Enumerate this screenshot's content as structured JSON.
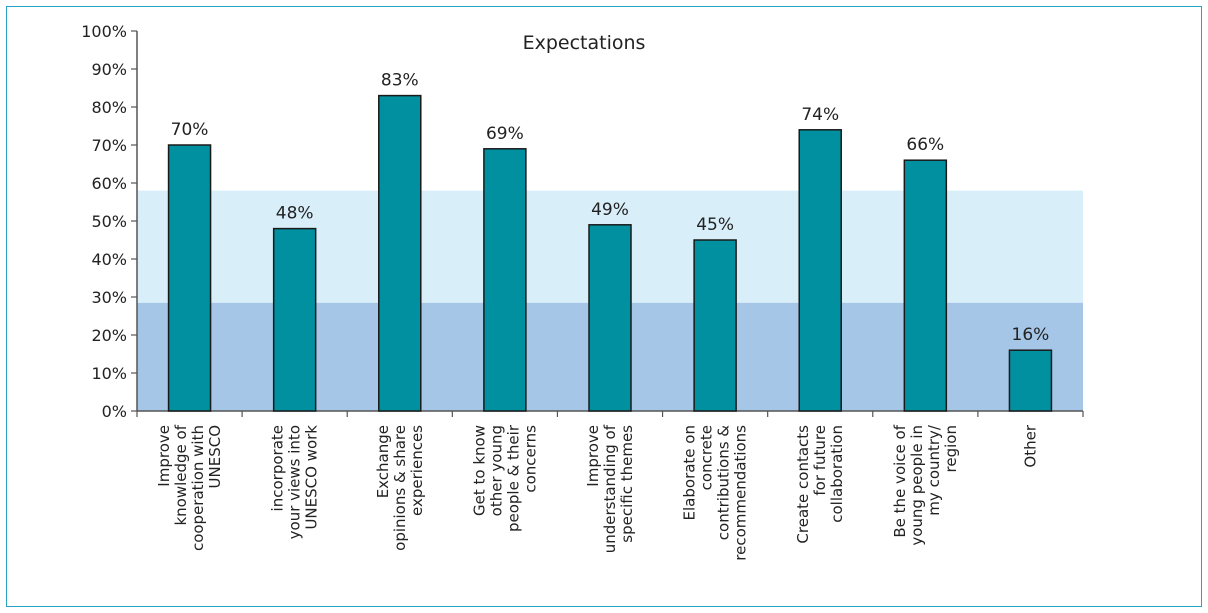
{
  "chart_data": {
    "type": "bar",
    "title": "Expectations",
    "categories": [
      [
        "Improve",
        "knowledge of",
        "cooperation with",
        "UNESCO"
      ],
      [
        "incorporate",
        "your views into",
        "UNESCO work"
      ],
      [
        "Exchange",
        "opinions & share",
        "experiences"
      ],
      [
        "Get to know",
        "other young",
        "people & their",
        "concerns"
      ],
      [
        "Improve",
        "understanding of",
        "specific themes"
      ],
      [
        "Elaborate on",
        "concrete",
        "contributions &",
        "recommendations"
      ],
      [
        "Create contacts",
        "for future",
        "collaboration"
      ],
      [
        "Be the voice of",
        "young people in",
        "my country/",
        "region"
      ],
      [
        "Other"
      ]
    ],
    "values": [
      70,
      48,
      83,
      69,
      49,
      45,
      74,
      66,
      16
    ],
    "data_labels": [
      "70%",
      "48%",
      "83%",
      "69%",
      "49%",
      "45%",
      "74%",
      "66%",
      "16%"
    ],
    "y_ticks": [
      "0%",
      "10%",
      "20%",
      "30%",
      "40%",
      "50%",
      "60%",
      "70%",
      "80%",
      "90%",
      "100%"
    ],
    "ylim": [
      0,
      100
    ],
    "xlabel": "",
    "ylabel": "",
    "bands": [
      {
        "from": 0,
        "to": 28.5,
        "color": "#a6c6e8"
      },
      {
        "from": 28.5,
        "to": 58,
        "color": "#d8eef9"
      }
    ],
    "colors": {
      "bar_fill": "#00909f",
      "bar_stroke": "#1a1a1a",
      "axis": "#555555",
      "frame": "#29a3c4"
    },
    "grid": false,
    "legend": "none"
  }
}
